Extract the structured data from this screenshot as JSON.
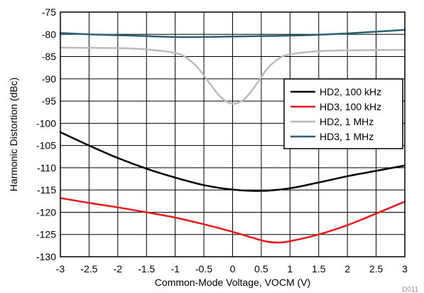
{
  "chart_data": {
    "type": "line",
    "xlabel": "Common-Mode Voltage, VOCM (V)",
    "ylabel": "Harmonic Distortion (dBc)",
    "xlim": [
      -3,
      3
    ],
    "ylim": [
      -130,
      -75
    ],
    "x_ticks": [
      "-3",
      "-2.5",
      "-2",
      "-1.5",
      "-1",
      "-0.5",
      "0",
      "0.5",
      "1",
      "1.5",
      "2",
      "2.5",
      "3"
    ],
    "y_ticks": [
      "-75",
      "-80",
      "-85",
      "-90",
      "-95",
      "-100",
      "-105",
      "-110",
      "-115",
      "-120",
      "-125",
      "-130"
    ],
    "grid": true,
    "legend_position": "right",
    "figure_id": "D011",
    "series": [
      {
        "name": "HD2, 100 kHz",
        "color": "#000000",
        "x": [
          -3,
          -2.5,
          -2,
          -1.5,
          -1,
          -0.5,
          0,
          0.5,
          1,
          1.5,
          2,
          2.5,
          3
        ],
        "y": [
          -102,
          -105,
          -107.8,
          -110.2,
          -112.2,
          -113.9,
          -114.9,
          -115.2,
          -114.6,
          -113.3,
          -111.9,
          -110.7,
          -109.5
        ]
      },
      {
        "name": "HD3, 100 kHz",
        "color": "#e41a1a",
        "x": [
          -3,
          -2.5,
          -2,
          -1.5,
          -1,
          -0.5,
          0,
          0.5,
          0.75,
          1,
          1.5,
          2,
          2.5,
          3
        ],
        "y": [
          -116.8,
          -117.9,
          -118.9,
          -120,
          -121.2,
          -122.7,
          -124.4,
          -126.3,
          -126.8,
          -126.5,
          -125,
          -122.9,
          -120.3,
          -117.6
        ]
      },
      {
        "name": "HD2, 1 MHz",
        "color": "#bbbbbb",
        "x": [
          -3,
          -2,
          -1.5,
          -1,
          -0.8,
          -0.6,
          -0.4,
          -0.2,
          0,
          0.2,
          0.4,
          0.6,
          0.8,
          1,
          1.5,
          2,
          3
        ],
        "y": [
          -83,
          -83.1,
          -83.4,
          -84.2,
          -85.3,
          -87.6,
          -91,
          -94.2,
          -95.6,
          -94.6,
          -91.5,
          -87.8,
          -85.5,
          -84.5,
          -83.8,
          -83.6,
          -83.5
        ]
      },
      {
        "name": "HD3, 1 MHz",
        "color": "#2e6177",
        "x": [
          -3,
          -2.5,
          -2,
          -1.5,
          -1,
          -0.5,
          0,
          0.5,
          1,
          1.5,
          2,
          2.5,
          3
        ],
        "y": [
          -79.7,
          -80,
          -80.2,
          -80.4,
          -80.6,
          -80.6,
          -80.5,
          -80.4,
          -80.3,
          -80.1,
          -79.8,
          -79.4,
          -79.0
        ]
      }
    ]
  }
}
